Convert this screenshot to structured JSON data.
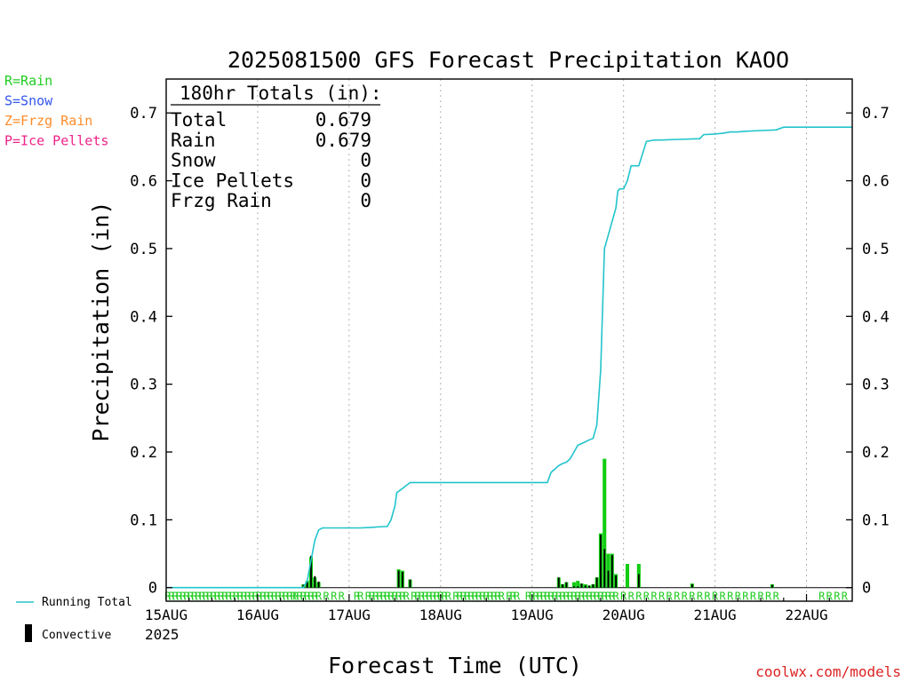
{
  "title": "2025081500 GFS Forecast Precipitation KAOO",
  "legend_left": [
    {
      "text": "R=Rain",
      "color": "#22cc22"
    },
    {
      "text": "S=Snow",
      "color": "#3355ee"
    },
    {
      "text": "Z=Frzg Rain",
      "color": "#ff8c2a"
    },
    {
      "text": "P=Ice Pellets",
      "color": "#ee2288"
    }
  ],
  "legend_bottom": {
    "running_total": "Running Total",
    "convective": "Convective"
  },
  "totals_box": {
    "header": "180hr Totals (in):",
    "rows": [
      {
        "label": "Total",
        "value": "0.679"
      },
      {
        "label": "Rain",
        "value": "0.679"
      },
      {
        "label": "Snow",
        "value": "0"
      },
      {
        "label": "Ice Pellets",
        "value": "0"
      },
      {
        "label": "Frzg Rain",
        "value": "0"
      }
    ]
  },
  "year_label": "2025",
  "credit": "coolwx.com/models",
  "colors": {
    "running_total": "#22c4cc",
    "rain_bar": "#11cc11",
    "convective_bar": "#000000",
    "ptype_mark": "#22cc22",
    "credit": "#dd2222",
    "grid": "#b0b0b0"
  },
  "chart_data": {
    "type": "bar",
    "title": "2025081500 GFS Forecast Precipitation KAOO",
    "xlabel": "Forecast Time (UTC)",
    "ylabel": "Precipitation (in)",
    "x_units": "forecast hour (3-hourly bars)",
    "xlim": [
      0,
      180
    ],
    "ylim": [
      -0.02,
      0.75
    ],
    "yticks": [
      0,
      0.1,
      0.2,
      0.3,
      0.4,
      0.5,
      0.6,
      0.7
    ],
    "ytick_labels": [
      "0",
      "0.1",
      "0.2",
      "0.3",
      "0.4",
      "0.5",
      "0.6",
      "0.7"
    ],
    "xticks": [
      0,
      24,
      48,
      72,
      96,
      120,
      144,
      168
    ],
    "xtick_labels": [
      "15AUG",
      "16AUG",
      "17AUG",
      "18AUG",
      "19AUG",
      "20AUG",
      "21AUG",
      "22AUG"
    ],
    "grid": "dotted vertical at day boundaries",
    "series": [
      {
        "name": "Running Total",
        "style": "line",
        "x": [
          0,
          36,
          37,
          38,
          39,
          40,
          41,
          42,
          45,
          48,
          50,
          51,
          54,
          57,
          58,
          59,
          60,
          60.5,
          61,
          64,
          68,
          72,
          76,
          80,
          84,
          96,
          100,
          101,
          102,
          103,
          104,
          105,
          106,
          107,
          108,
          110,
          111,
          112,
          113,
          114,
          115,
          116,
          117,
          118,
          118.5,
          119,
          119.5,
          120,
          121,
          122,
          123,
          124,
          125,
          126,
          127,
          128,
          130,
          134,
          140,
          141,
          144,
          146,
          148,
          150,
          152,
          156,
          160,
          162,
          164,
          168,
          170,
          174,
          176,
          180
        ],
        "y": [
          0,
          0,
          0.01,
          0.04,
          0.07,
          0.085,
          0.088,
          0.088,
          0.088,
          0.088,
          0.088,
          0.088,
          0.089,
          0.09,
          0.09,
          0.1,
          0.12,
          0.14,
          0.142,
          0.155,
          0.155,
          0.155,
          0.155,
          0.155,
          0.155,
          0.155,
          0.155,
          0.17,
          0.175,
          0.18,
          0.183,
          0.185,
          0.19,
          0.2,
          0.21,
          0.215,
          0.218,
          0.22,
          0.24,
          0.32,
          0.5,
          0.52,
          0.54,
          0.56,
          0.585,
          0.588,
          0.588,
          0.588,
          0.6,
          0.622,
          0.622,
          0.622,
          0.64,
          0.658,
          0.659,
          0.66,
          0.66,
          0.661,
          0.662,
          0.668,
          0.669,
          0.67,
          0.672,
          0.672,
          0.673,
          0.674,
          0.675,
          0.679,
          0.679,
          0.679,
          0.679,
          0.679,
          0.679,
          0.679
        ]
      },
      {
        "name": "Rain",
        "style": "bars",
        "x": [
          36,
          37,
          38,
          39,
          40,
          61,
          62,
          64,
          103,
          104,
          105,
          107,
          108,
          109,
          110,
          111,
          112,
          113,
          114,
          115,
          116,
          117,
          118,
          121,
          124,
          138,
          159
        ],
        "y": [
          0.005,
          0.01,
          0.045,
          0.015,
          0.008,
          0.027,
          0.025,
          0.012,
          0.015,
          0.005,
          0.008,
          0.008,
          0.01,
          0.006,
          0.005,
          0.003,
          0.005,
          0.015,
          0.08,
          0.19,
          0.05,
          0.05,
          0.02,
          0.035,
          0.035,
          0.006,
          0.005
        ]
      },
      {
        "name": "Convective",
        "style": "bars",
        "x": [
          36,
          37,
          38,
          39,
          40,
          61,
          62,
          64,
          103,
          104,
          105,
          107,
          108,
          109,
          110,
          111,
          112,
          113,
          114,
          115,
          116,
          117,
          118,
          121,
          124,
          138,
          159
        ],
        "y": [
          0.004,
          0.008,
          0.047,
          0.017,
          0.009,
          0.025,
          0.023,
          0.012,
          0.015,
          0.005,
          0.008,
          0.002,
          0.002,
          0.006,
          0.003,
          0.003,
          0.005,
          0.015,
          0.078,
          0.057,
          0.025,
          0.048,
          0.018,
          0.0,
          0.02,
          0.005,
          0.004
        ]
      }
    ],
    "ptype_row": {
      "symbol": "R",
      "dense_range": [
        0,
        34
      ],
      "x": [
        34,
        35,
        36,
        37,
        38,
        39,
        40,
        42,
        44,
        46,
        50,
        51,
        53,
        54,
        55,
        56,
        57,
        58,
        59,
        60,
        61,
        62,
        63,
        65,
        66,
        67,
        68,
        69,
        70,
        71,
        72,
        73,
        74,
        76,
        77,
        78,
        79,
        80,
        81,
        82,
        83,
        84,
        85,
        86,
        87,
        88,
        90,
        91,
        92,
        95,
        96,
        97,
        98,
        99,
        100,
        101,
        102,
        103,
        104,
        105,
        106,
        107,
        108,
        109,
        110,
        111,
        112,
        113,
        114,
        115,
        116,
        117,
        118,
        120,
        122,
        124,
        126,
        128,
        130,
        132,
        134,
        136,
        138,
        140,
        142,
        144,
        146,
        148,
        150,
        152,
        154,
        156,
        158,
        160,
        172,
        174,
        176,
        178
      ]
    }
  }
}
